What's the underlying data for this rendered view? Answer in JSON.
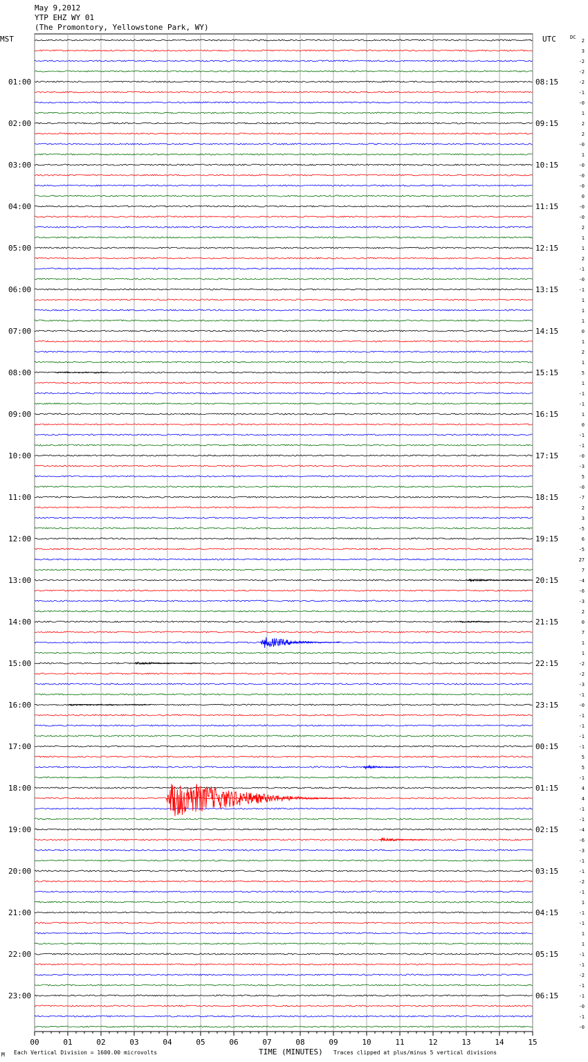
{
  "header": {
    "date": "May 9,2012",
    "station": "YTP EHZ WY 01",
    "location": "(The Promontory, Yellowstone Park, WY)"
  },
  "labels": {
    "left_zone": "MST",
    "right_zone": "UTC",
    "dc_label": "DC"
  },
  "footer": {
    "scale_note": "Each Vertical Division = 1600.00 microvolts",
    "clip_note": "Traces clipped at plus/minus 5 vertical divisions",
    "corner_mark": "M"
  },
  "colors": {
    "trace_cycle": [
      "#000000",
      "#ff0000",
      "#0000ff",
      "#007000"
    ],
    "grid": "#999999"
  },
  "chart_data": {
    "type": "line",
    "title": "YTP EHZ WY 01",
    "xlabel": "TIME (MINUTES)",
    "ylabel": "",
    "x_ticks": [
      "00",
      "01",
      "02",
      "03",
      "04",
      "05",
      "06",
      "07",
      "08",
      "09",
      "10",
      "11",
      "12",
      "13",
      "14",
      "15"
    ],
    "xlim": [
      0,
      15
    ],
    "trace_count": 96,
    "minutes_per_trace": 15,
    "left_time_labels": [
      "01:00",
      "02:00",
      "03:00",
      "04:00",
      "05:00",
      "06:00",
      "07:00",
      "08:00",
      "09:00",
      "10:00",
      "11:00",
      "12:00",
      "13:00",
      "14:00",
      "15:00",
      "16:00",
      "17:00",
      "18:00",
      "19:00",
      "20:00",
      "21:00",
      "22:00",
      "23:00"
    ],
    "right_time_labels": [
      "08:15",
      "09:15",
      "10:15",
      "11:15",
      "12:15",
      "13:15",
      "14:15",
      "15:15",
      "16:15",
      "17:15",
      "18:15",
      "19:15",
      "20:15",
      "21:15",
      "22:15",
      "23:15",
      "00:15",
      "01:15",
      "02:15",
      "03:15",
      "04:15",
      "05:15",
      "06:15"
    ],
    "dc_offsets": [
      "2",
      "3",
      "-2",
      "-2",
      "-2",
      "-1",
      "-0",
      "1",
      "2",
      "2",
      "-0",
      "1",
      "-0",
      "-0",
      "-0",
      "0",
      "-0",
      "-0",
      "2",
      "1",
      "1",
      "2",
      "-1",
      "-0",
      "-1",
      "1",
      "1",
      "1",
      "0",
      "1",
      "2",
      "1",
      "5",
      "1",
      "-1",
      "-1",
      "1",
      "0",
      "-1",
      "-1",
      "-0",
      "-3",
      "5",
      "-0",
      "-7",
      "2",
      "3",
      "-5",
      "6",
      "-5",
      "27",
      "7",
      "-4",
      "-6",
      "-3",
      "2",
      "0",
      "7",
      "1",
      "1",
      "-2",
      "-2",
      "-3",
      "-1",
      "-0",
      "-1",
      "-1",
      "-1",
      "-1",
      "5",
      "5",
      "-1",
      "4",
      "4",
      "-1",
      "-1",
      "-4",
      "-6",
      "-3",
      "-1",
      "-1",
      "-2",
      "-1",
      "1",
      "-1",
      "-1",
      "1",
      "1",
      "-1",
      "-1",
      "-2",
      "-1",
      "-1",
      "-0",
      "-1",
      "-0"
    ],
    "events": [
      {
        "trace": 32,
        "start_min": 0.6,
        "end_min": 2.2,
        "amplitude": 1.2
      },
      {
        "trace": 52,
        "start_min": 13.0,
        "end_min": 15.0,
        "amplitude": 2.0
      },
      {
        "trace": 56,
        "start_min": 12.8,
        "end_min": 14.2,
        "amplitude": 1.5
      },
      {
        "trace": 58,
        "start_min": 6.8,
        "end_min": 9.2,
        "amplitude": 9.0
      },
      {
        "trace": 60,
        "start_min": 3.0,
        "end_min": 5.0,
        "amplitude": 2.2
      },
      {
        "trace": 64,
        "start_min": 1.0,
        "end_min": 3.5,
        "amplitude": 1.2
      },
      {
        "trace": 70,
        "start_min": 9.9,
        "end_min": 11.0,
        "amplitude": 3.0
      },
      {
        "trace": 73,
        "start_min": 3.95,
        "end_min": 9.5,
        "amplitude": 30.0
      },
      {
        "trace": 77,
        "start_min": 10.4,
        "end_min": 11.8,
        "amplitude": 3.0
      }
    ]
  }
}
